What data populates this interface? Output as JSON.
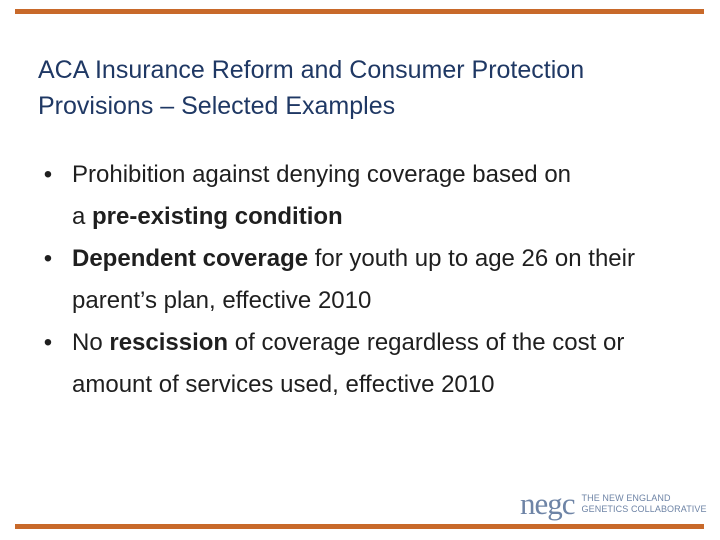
{
  "slide": {
    "title_line1": "ACA Insurance Reform and Consumer Protection",
    "title_line2": "Provisions – Selected Examples",
    "accent_color": "#c8692a",
    "title_color": "#1f3864"
  },
  "bullets": [
    {
      "marker": "•",
      "pre1": "Prohibition against denying coverage based on",
      "pre2": "a ",
      "bold": "pre-existing condition",
      "post": ""
    },
    {
      "marker": "•",
      "bold": "Dependent coverage",
      "post": " for youth up to age 26 on their parent’s plan, effective 2010"
    },
    {
      "marker": "•",
      "pre": "No ",
      "bold": "rescission",
      "post": " of coverage regardless of the cost or amount of services used, effective 2010"
    }
  ],
  "logo": {
    "mark": "negc",
    "line1": "THE NEW ENGLAND",
    "line2": "GENETICS COLLABORATIVE",
    "color": "#6e84a6"
  }
}
